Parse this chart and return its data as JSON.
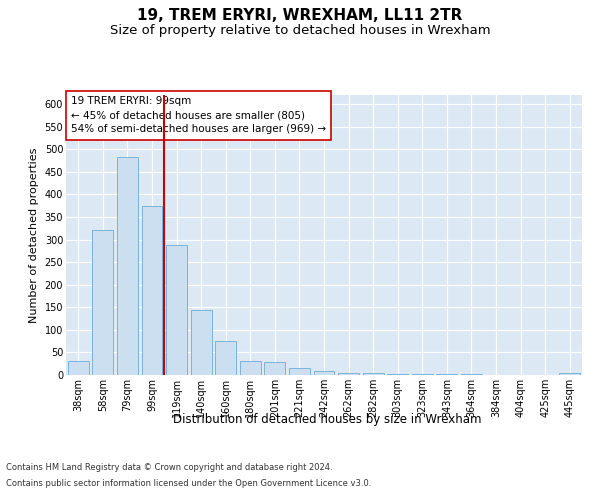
{
  "title": "19, TREM ERYRI, WREXHAM, LL11 2TR",
  "subtitle": "Size of property relative to detached houses in Wrexham",
  "xlabel": "Distribution of detached houses by size in Wrexham",
  "ylabel": "Number of detached properties",
  "categories": [
    "38sqm",
    "58sqm",
    "79sqm",
    "99sqm",
    "119sqm",
    "140sqm",
    "160sqm",
    "180sqm",
    "201sqm",
    "221sqm",
    "242sqm",
    "262sqm",
    "282sqm",
    "303sqm",
    "323sqm",
    "343sqm",
    "364sqm",
    "384sqm",
    "404sqm",
    "425sqm",
    "445sqm"
  ],
  "values": [
    31,
    320,
    482,
    375,
    288,
    143,
    76,
    31,
    28,
    15,
    8,
    5,
    4,
    3,
    2,
    2,
    2,
    1,
    0,
    0,
    5
  ],
  "bar_color": "#ccdff0",
  "bar_edge_color": "#6aaed6",
  "red_line_x": 3.5,
  "red_line_color": "#cc0000",
  "annotation_line1": "19 TREM ERYRI: 99sqm",
  "annotation_line2": "← 45% of detached houses are smaller (805)",
  "annotation_line3": "54% of semi-detached houses are larger (969) →",
  "annotation_box_facecolor": "#ffffff",
  "annotation_box_edgecolor": "#cc0000",
  "ylim": [
    0,
    620
  ],
  "yticks": [
    0,
    50,
    100,
    150,
    200,
    250,
    300,
    350,
    400,
    450,
    500,
    550,
    600
  ],
  "bg_color": "#dce8f4",
  "title_fontsize": 11,
  "subtitle_fontsize": 9.5,
  "ylabel_fontsize": 8,
  "xlabel_fontsize": 8.5,
  "tick_fontsize": 7,
  "annotation_fontsize": 7.5,
  "footer_fontsize": 6,
  "footer_line1": "Contains HM Land Registry data © Crown copyright and database right 2024.",
  "footer_line2": "Contains public sector information licensed under the Open Government Licence v3.0."
}
